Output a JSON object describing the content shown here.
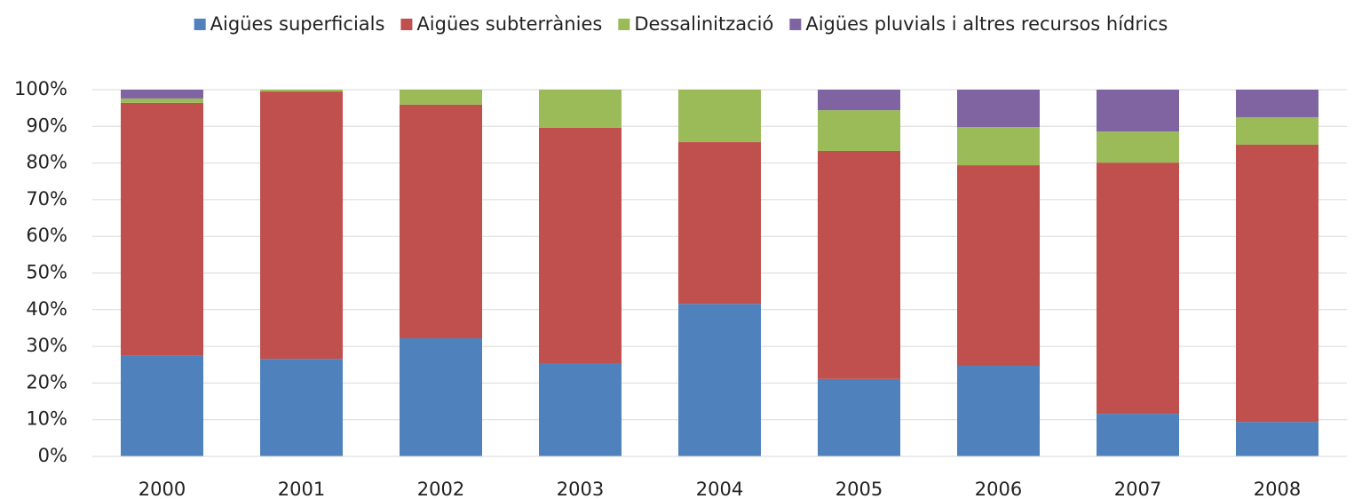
{
  "chart_data": {
    "type": "stacked_bar",
    "categories": [
      "2000",
      "2001",
      "2002",
      "2003",
      "2004",
      "2005",
      "2006",
      "2007",
      "2008"
    ],
    "series": [
      {
        "name": "Aigües superficials",
        "color": "#4f81bd",
        "values": [
          27.4,
          26.6,
          32.2,
          25.2,
          41.6,
          21.1,
          24.7,
          11.6,
          9.4
        ]
      },
      {
        "name": "Aigües subterrànies",
        "color": "#c0504d",
        "values": [
          69.0,
          72.9,
          63.7,
          64.4,
          44.1,
          62.2,
          54.7,
          68.5,
          75.6
        ]
      },
      {
        "name": "Dessalinització",
        "color": "#9bbb59",
        "values": [
          1.2,
          0.5,
          4.1,
          10.4,
          14.3,
          11.1,
          10.4,
          8.5,
          7.5
        ]
      },
      {
        "name": "Aigües pluvials i altres recursos hídrics",
        "color": "#8064a2",
        "values": [
          2.4,
          0,
          0,
          0,
          0,
          5.6,
          10.2,
          11.4,
          7.5
        ]
      }
    ],
    "ylim": [
      0,
      100
    ],
    "yticks": [
      {
        "value": 0,
        "label": "0%"
      },
      {
        "value": 10,
        "label": "10%"
      },
      {
        "value": 20,
        "label": "20%"
      },
      {
        "value": 30,
        "label": "30%"
      },
      {
        "value": 40,
        "label": "40%"
      },
      {
        "value": 50,
        "label": "50%"
      },
      {
        "value": 60,
        "label": "60%"
      },
      {
        "value": 70,
        "label": "70%"
      },
      {
        "value": 80,
        "label": "80%"
      },
      {
        "value": 90,
        "label": "90%"
      },
      {
        "value": 100,
        "label": "100%"
      }
    ],
    "grid": true,
    "legend": "top"
  }
}
